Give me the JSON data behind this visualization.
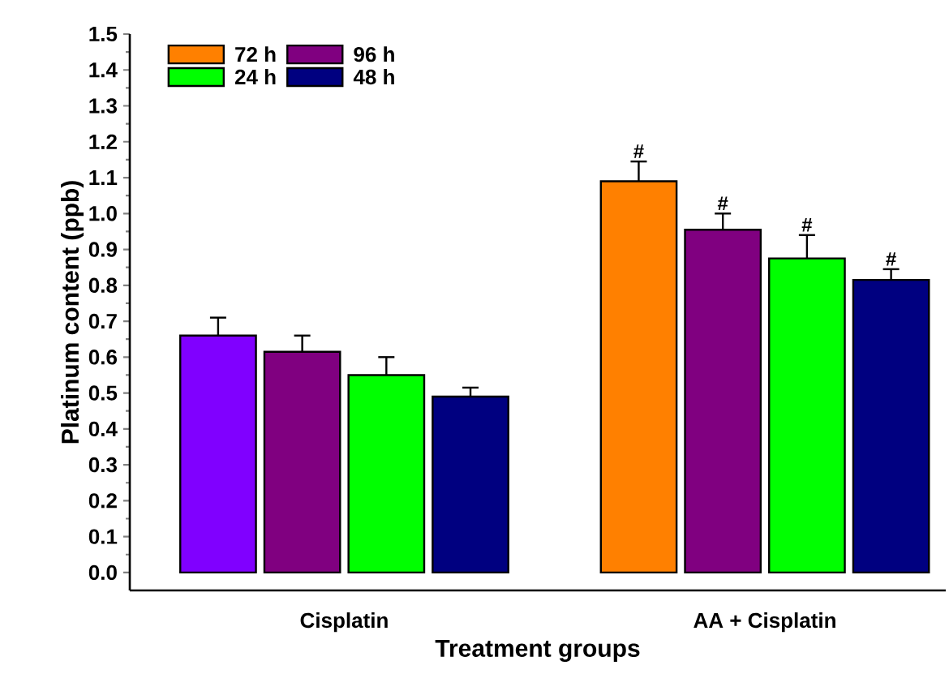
{
  "chart_data": {
    "type": "bar",
    "xlabel": "Treatment groups",
    "ylabel": "Platinum content (ppb)",
    "categories": [
      "Cisplatin",
      "AA + Cisplatin"
    ],
    "series": [
      {
        "name": "72 h",
        "color": "#ff8000",
        "colors": [
          "#8000ff",
          "#ff8000"
        ],
        "values": [
          0.66,
          1.09
        ],
        "errors": [
          [
            0.66,
            0.71
          ],
          [
            1.09,
            1.145
          ]
        ]
      },
      {
        "name": "96 h",
        "color": "#800080",
        "values": [
          0.615,
          0.955
        ],
        "errors": [
          [
            0.615,
            0.66
          ],
          [
            0.955,
            1.0
          ]
        ]
      },
      {
        "name": "24 h",
        "color": "#00ff00",
        "values": [
          0.55,
          0.875
        ],
        "errors": [
          [
            0.55,
            0.6
          ],
          [
            0.875,
            0.94
          ]
        ]
      },
      {
        "name": "48 h",
        "color": "#000080",
        "values": [
          0.49,
          0.815
        ],
        "errors": [
          [
            0.49,
            0.515
          ],
          [
            0.815,
            0.845
          ]
        ]
      }
    ],
    "ylim": [
      -0.05,
      1.5
    ],
    "yticks": [
      {
        "value": 0,
        "label": "0.0"
      },
      0.1,
      0.2,
      0.3,
      0.4,
      0.5,
      0.6,
      0.7,
      0.8,
      0.9,
      {
        "value": 1,
        "label": "1.0"
      },
      1.1,
      1.2,
      1.3,
      1.4,
      1.5
    ],
    "annotations": [
      "#",
      "#",
      "#",
      "#"
    ],
    "legend": "top left",
    "grid": false
  }
}
